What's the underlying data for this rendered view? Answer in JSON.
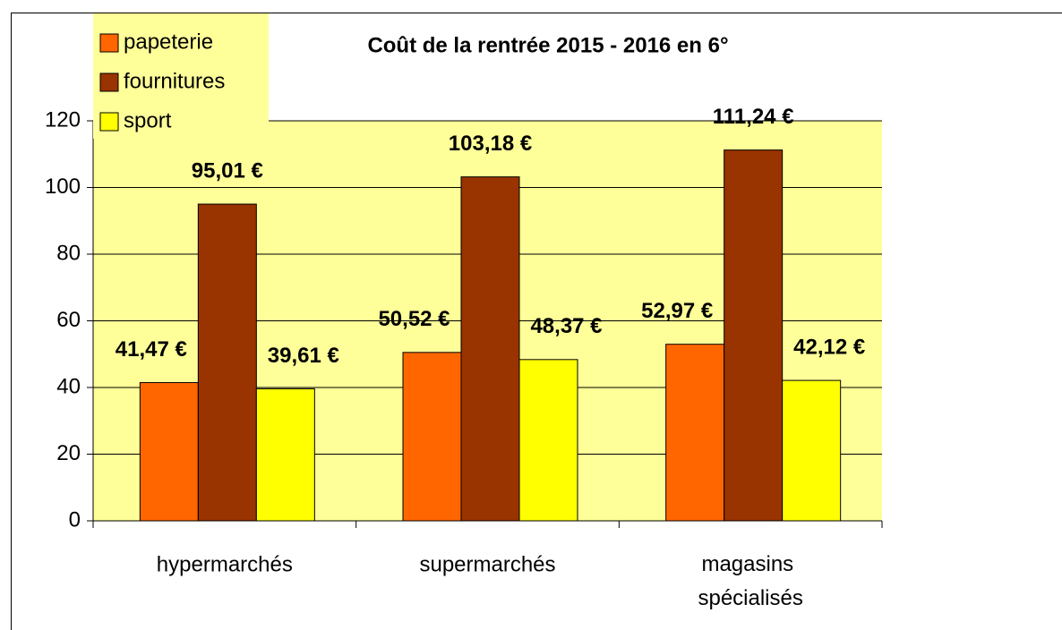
{
  "chart_data": {
    "type": "bar",
    "title": "Coût de la rentrée 2015 - 2016 en 6°",
    "categories": [
      "hypermarchés",
      "supermarchés",
      "magasins spécialisés"
    ],
    "series": [
      {
        "name": "papeterie",
        "color": "#ff6600",
        "values": [
          41.47,
          50.52,
          52.97
        ],
        "value_labels": [
          "41,47 €",
          "50,52 €",
          "52,97 €"
        ]
      },
      {
        "name": "fournitures",
        "color": "#993300",
        "values": [
          95.01,
          103.18,
          111.24
        ],
        "value_labels": [
          "95,01 €",
          "103,18 €",
          "111,24 €"
        ]
      },
      {
        "name": "sport",
        "color": "#ffff00",
        "values": [
          39.61,
          48.37,
          42.12
        ],
        "value_labels": [
          "39,61 €",
          "48,37 €",
          "42,12 €"
        ]
      }
    ],
    "ylim": [
      0,
      120
    ],
    "yticks": [
      0,
      20,
      40,
      60,
      80,
      100,
      120
    ],
    "grid": true,
    "legend": "top-left",
    "plot_background": "#ffff99"
  }
}
